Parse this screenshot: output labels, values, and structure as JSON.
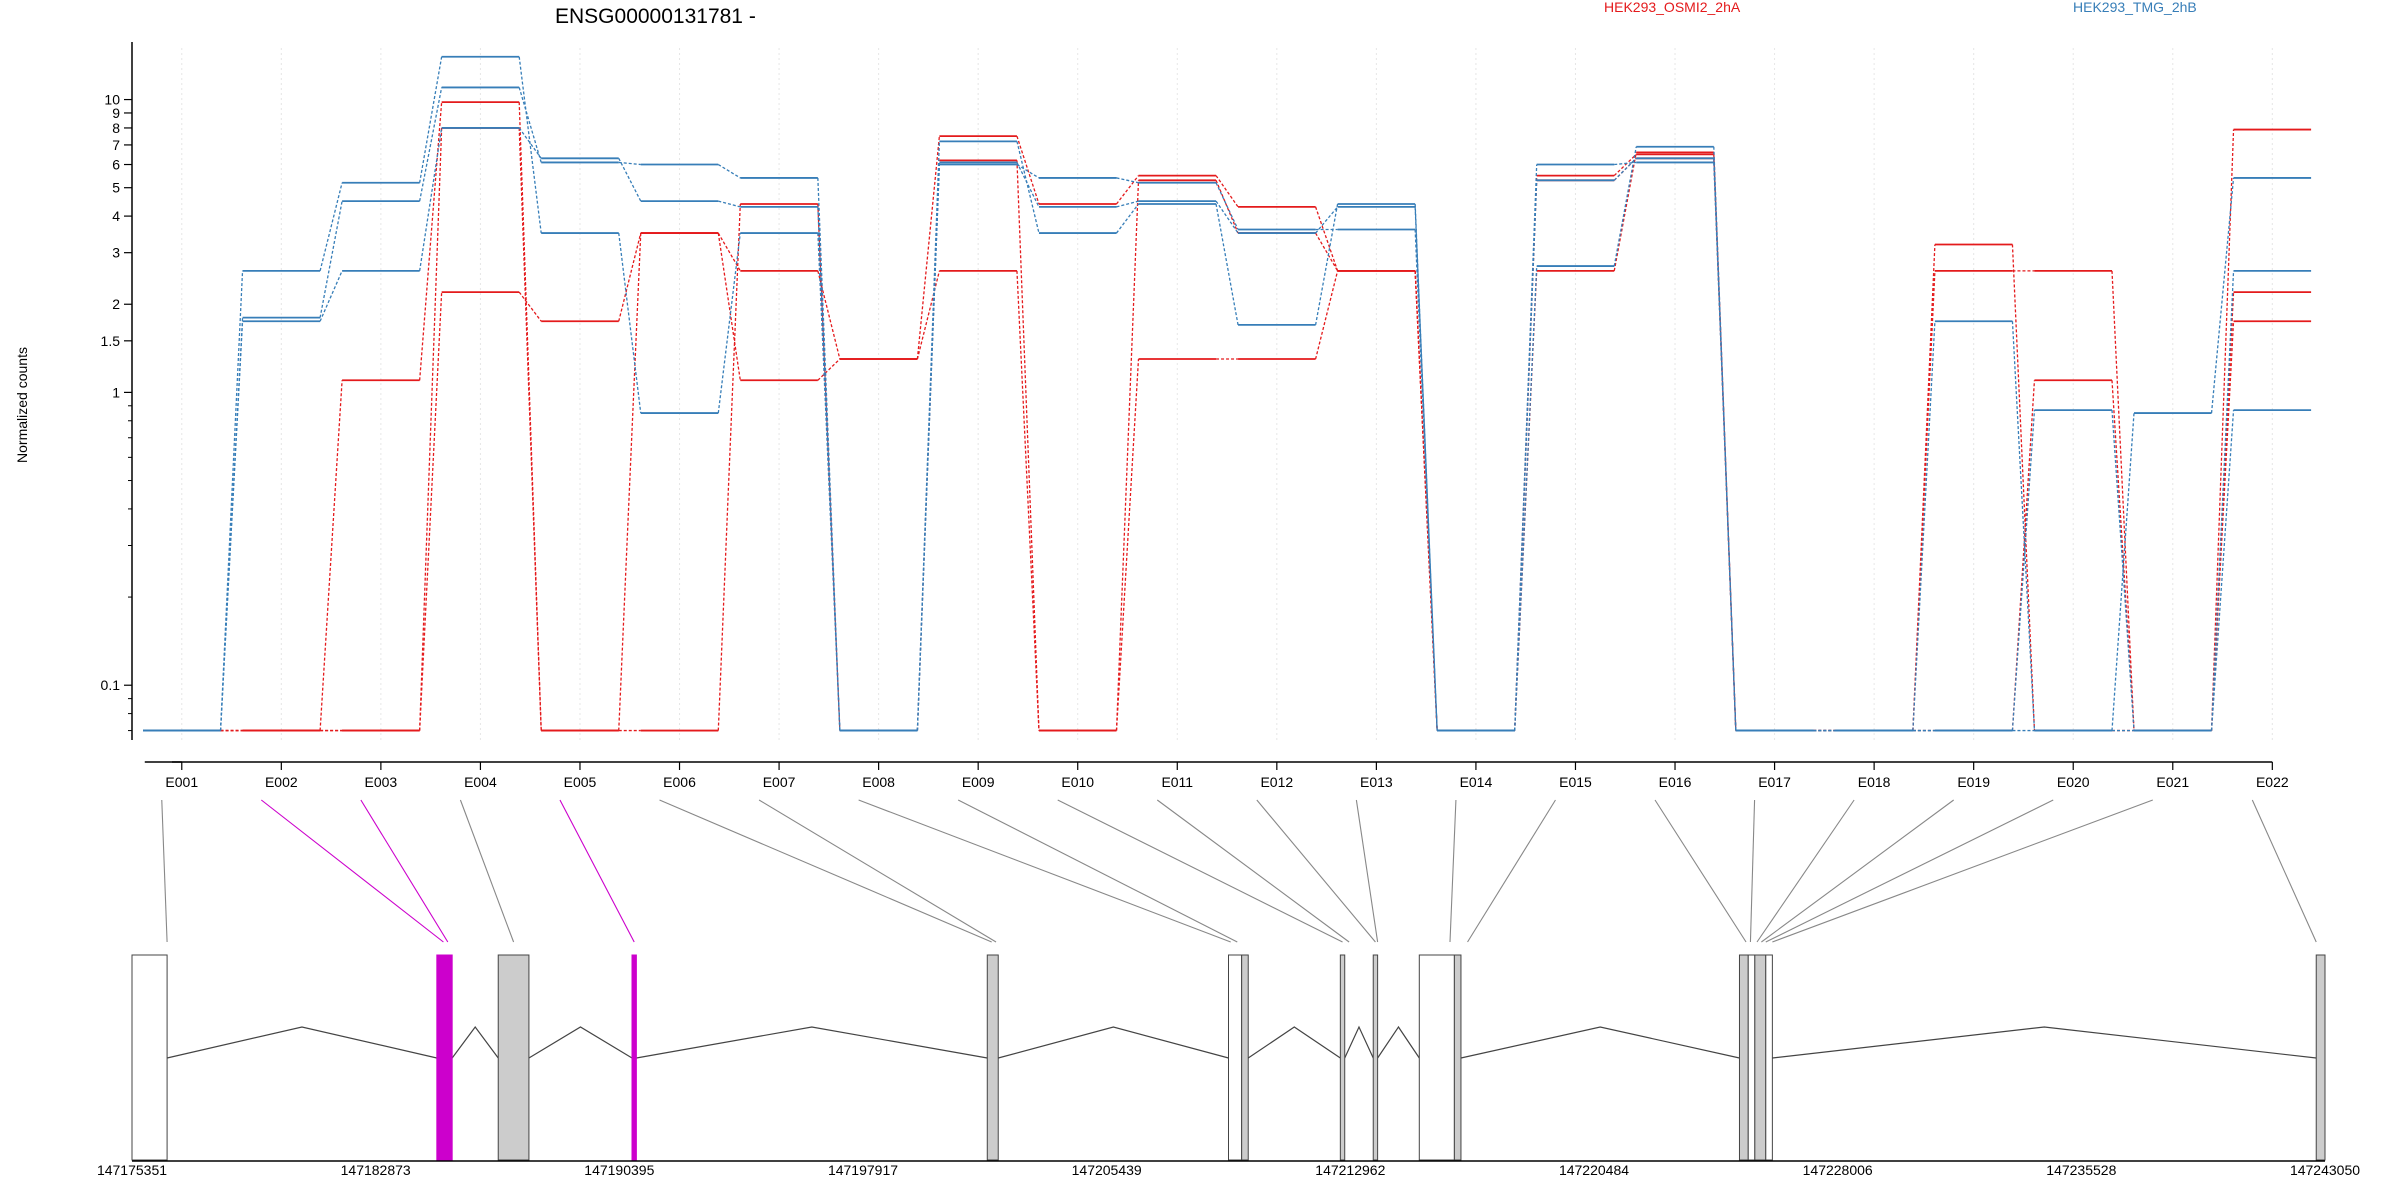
{
  "header": {
    "title": "ENSG00000131781 -",
    "legend": [
      {
        "label": "HEK293_OSMI2_2hA",
        "color": "#e41a1c"
      },
      {
        "label": "HEK293_TMG_2hB",
        "color": "#377eb8"
      }
    ]
  },
  "chart_data": {
    "type": "line",
    "ylabel": "Normalized counts",
    "yscale": "log",
    "ylim": [
      0.065,
      15
    ],
    "ytick_labels": [
      "0.1",
      "1",
      "1.5",
      "2",
      "3",
      "4",
      "5",
      "6",
      "7",
      "8",
      "9",
      "10"
    ],
    "ytick_values": [
      0.1,
      1,
      1.5,
      2,
      3,
      4,
      5,
      6,
      7,
      8,
      9,
      10
    ],
    "categories": [
      "E001",
      "E002",
      "E003",
      "E004",
      "E005",
      "E006",
      "E007",
      "E008",
      "E009",
      "E010",
      "E011",
      "E012",
      "E013",
      "E014",
      "E015",
      "E016",
      "E017",
      "E018",
      "E019",
      "E020",
      "E021",
      "E022"
    ],
    "grid": true,
    "series": [
      {
        "group": "HEK293_OSMI2_2hA",
        "color": "#e41a1c",
        "values": [
          0.07,
          0.07,
          0.07,
          8.0,
          0.07,
          0.07,
          4.4,
          0.07,
          6.2,
          0.07,
          5.3,
          3.5,
          2.6,
          0.07,
          5.5,
          6.5,
          0.07,
          0.07,
          3.2,
          0.07,
          0.07,
          7.9
        ]
      },
      {
        "group": "HEK293_OSMI2_2hA",
        "color": "#e41a1c",
        "values": [
          0.07,
          0.07,
          1.1,
          9.8,
          0.07,
          3.5,
          2.6,
          1.3,
          7.5,
          4.4,
          5.5,
          4.3,
          2.6,
          0.07,
          2.6,
          6.6,
          0.07,
          0.07,
          2.6,
          2.6,
          0.07,
          2.2
        ]
      },
      {
        "group": "HEK293_OSMI2_2hA",
        "color": "#e41a1c",
        "values": [
          0.07,
          0.07,
          0.07,
          2.2,
          1.75,
          3.5,
          1.1,
          1.3,
          2.6,
          0.07,
          1.3,
          1.3,
          2.6,
          0.07,
          5.3,
          6.3,
          0.07,
          0.07,
          0.07,
          1.1,
          0.07,
          1.75
        ]
      },
      {
        "group": "HEK293_TMG_2hB",
        "color": "#377eb8",
        "values": [
          0.07,
          2.6,
          5.2,
          14.0,
          3.5,
          0.85,
          3.5,
          0.07,
          7.2,
          3.5,
          4.4,
          1.7,
          4.4,
          0.07,
          2.7,
          6.9,
          0.07,
          0.07,
          1.75,
          0.07,
          0.85,
          5.4
        ]
      },
      {
        "group": "HEK293_TMG_2hB",
        "color": "#377eb8",
        "values": [
          0.07,
          1.8,
          4.5,
          11.0,
          6.1,
          6.0,
          5.4,
          0.07,
          6.0,
          5.4,
          5.2,
          3.6,
          3.6,
          0.07,
          6.0,
          6.1,
          0.07,
          0.07,
          0.07,
          0.07,
          0.07,
          2.6
        ]
      },
      {
        "group": "HEK293_TMG_2hB",
        "color": "#377eb8",
        "values": [
          0.07,
          1.75,
          2.6,
          8.0,
          6.3,
          4.5,
          4.3,
          0.07,
          6.1,
          4.3,
          4.5,
          3.5,
          4.3,
          0.07,
          5.3,
          6.3,
          0.07,
          0.07,
          0.07,
          0.87,
          0.07,
          0.87
        ]
      }
    ]
  },
  "gene_model": {
    "coordinate_labels": [
      "147175351",
      "147182873",
      "147190395",
      "147197917",
      "147205439",
      "147212962",
      "147220484",
      "147228006",
      "147235528",
      "147243050"
    ],
    "highlight_color": "#cc00cc",
    "exon_links": [
      {
        "exon": "E001",
        "target": 0.016,
        "highlight": false
      },
      {
        "exon": "E002",
        "target": 0.142,
        "highlight": true
      },
      {
        "exon": "E003",
        "target": 0.144,
        "highlight": true
      },
      {
        "exon": "E004",
        "target": 0.174,
        "highlight": false
      },
      {
        "exon": "E005",
        "target": 0.229,
        "highlight": true
      },
      {
        "exon": "E006",
        "target": 0.392,
        "highlight": false
      },
      {
        "exon": "E007",
        "target": 0.394,
        "highlight": false
      },
      {
        "exon": "E008",
        "target": 0.501,
        "highlight": false
      },
      {
        "exon": "E009",
        "target": 0.504,
        "highlight": false
      },
      {
        "exon": "E010",
        "target": 0.552,
        "highlight": false
      },
      {
        "exon": "E011",
        "target": 0.555,
        "highlight": false
      },
      {
        "exon": "E012",
        "target": 0.567,
        "highlight": false
      },
      {
        "exon": "E013",
        "target": 0.568,
        "highlight": false
      },
      {
        "exon": "E014",
        "target": 0.601,
        "highlight": false
      },
      {
        "exon": "E015",
        "target": 0.609,
        "highlight": false
      },
      {
        "exon": "E016",
        "target": 0.736,
        "highlight": false
      },
      {
        "exon": "E017",
        "target": 0.738,
        "highlight": false
      },
      {
        "exon": "E018",
        "target": 0.741,
        "highlight": false
      },
      {
        "exon": "E019",
        "target": 0.743,
        "highlight": false
      },
      {
        "exon": "E020",
        "target": 0.745,
        "highlight": false
      },
      {
        "exon": "E021",
        "target": 0.748,
        "highlight": false
      },
      {
        "exon": "E022",
        "target": 0.996,
        "highlight": false
      }
    ],
    "exon_blocks": [
      {
        "start": 0.0,
        "end": 0.016,
        "fill": "white"
      },
      {
        "start": 0.139,
        "end": 0.146,
        "fill": "highlight"
      },
      {
        "start": 0.167,
        "end": 0.181,
        "fill": "gray"
      },
      {
        "start": 0.228,
        "end": 0.23,
        "fill": "highlight"
      },
      {
        "start": 0.39,
        "end": 0.395,
        "fill": "gray"
      },
      {
        "start": 0.5,
        "end": 0.506,
        "fill": "white"
      },
      {
        "start": 0.506,
        "end": 0.509,
        "fill": "gray"
      },
      {
        "start": 0.551,
        "end": 0.553,
        "fill": "gray"
      },
      {
        "start": 0.566,
        "end": 0.568,
        "fill": "gray"
      },
      {
        "start": 0.587,
        "end": 0.603,
        "fill": "white"
      },
      {
        "start": 0.603,
        "end": 0.606,
        "fill": "gray"
      },
      {
        "start": 0.733,
        "end": 0.737,
        "fill": "gray"
      },
      {
        "start": 0.737,
        "end": 0.74,
        "fill": "white"
      },
      {
        "start": 0.74,
        "end": 0.745,
        "fill": "gray"
      },
      {
        "start": 0.745,
        "end": 0.748,
        "fill": "white"
      },
      {
        "start": 0.996,
        "end": 1.0,
        "fill": "gray"
      }
    ],
    "introns": [
      [
        0.016,
        0.139
      ],
      [
        0.146,
        0.167
      ],
      [
        0.181,
        0.228
      ],
      [
        0.23,
        0.39
      ],
      [
        0.395,
        0.5
      ],
      [
        0.509,
        0.551
      ],
      [
        0.553,
        0.566
      ],
      [
        0.568,
        0.587
      ],
      [
        0.606,
        0.733
      ],
      [
        0.748,
        0.996
      ]
    ]
  }
}
